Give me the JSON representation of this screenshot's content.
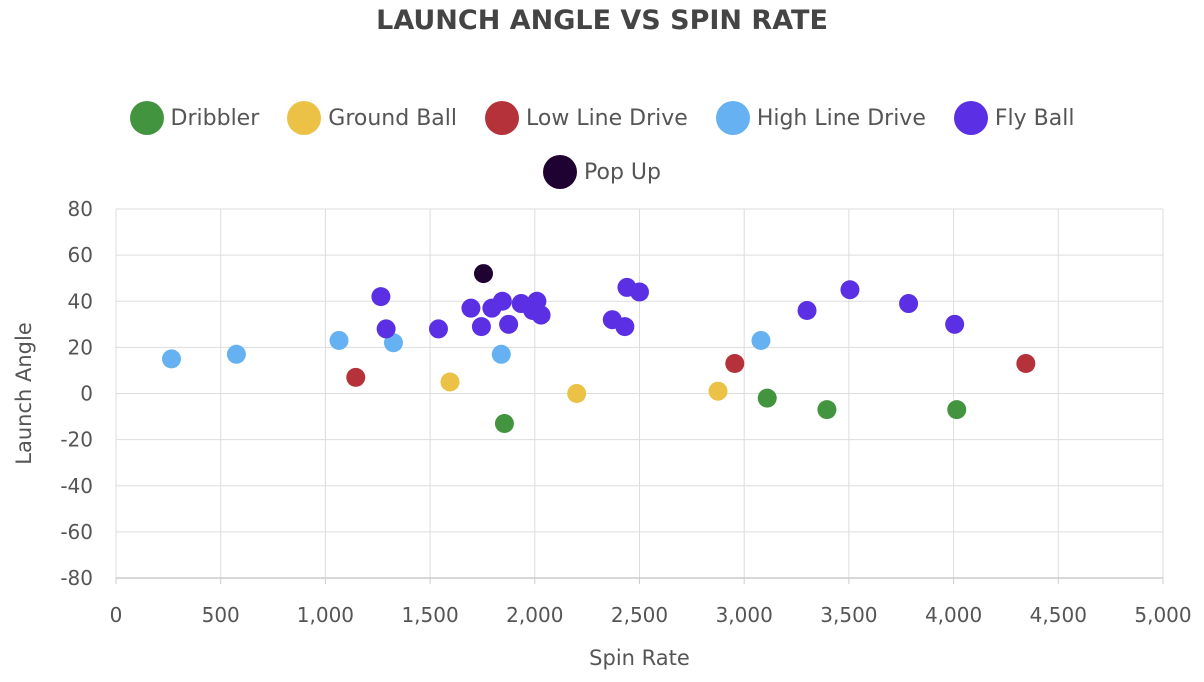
{
  "chart_data": {
    "type": "scatter",
    "title": "LAUNCH ANGLE VS SPIN RATE",
    "xlabel": "Spin Rate",
    "ylabel": "Launch Angle",
    "xlim": [
      0,
      5000
    ],
    "ylim": [
      -80,
      80
    ],
    "x_ticks": [
      0,
      500,
      1000,
      1500,
      2000,
      2500,
      3000,
      3500,
      4000,
      4500,
      5000
    ],
    "x_tick_labels": [
      "0",
      "500",
      "1,000",
      "1,500",
      "2,000",
      "2,500",
      "3,000",
      "3,500",
      "4,000",
      "4,500",
      "5,000"
    ],
    "y_ticks": [
      80,
      60,
      40,
      20,
      0,
      -20,
      -40,
      -60,
      -80
    ],
    "y_tick_labels": [
      "80",
      "60",
      "40",
      "20",
      "0",
      "-20",
      "-40",
      "-60",
      "-80"
    ],
    "grid": true,
    "legend_placement": "top-center",
    "series": [
      {
        "name": "Dribbler",
        "color": "#43943f",
        "points": [
          [
            1855,
            -13
          ],
          [
            3110,
            -2
          ],
          [
            3395,
            -7
          ],
          [
            4015,
            -7
          ]
        ]
      },
      {
        "name": "Ground Ball",
        "color": "#ecc246",
        "points": [
          [
            1595,
            5
          ],
          [
            2200,
            0
          ],
          [
            2875,
            1
          ]
        ]
      },
      {
        "name": "Low Line Drive",
        "color": "#b5323a",
        "points": [
          [
            1145,
            7
          ],
          [
            2955,
            13
          ],
          [
            4345,
            13
          ]
        ]
      },
      {
        "name": "High Line Drive",
        "color": "#66b1f1",
        "points": [
          [
            265,
            15
          ],
          [
            575,
            17
          ],
          [
            1065,
            23
          ],
          [
            1325,
            22
          ],
          [
            1840,
            17
          ],
          [
            3080,
            23
          ]
        ]
      },
      {
        "name": "Fly Ball",
        "color": "#5b2fe4",
        "points": [
          [
            1265,
            42
          ],
          [
            1290,
            28
          ],
          [
            1540,
            28
          ],
          [
            1695,
            37
          ],
          [
            1745,
            29
          ],
          [
            1795,
            37
          ],
          [
            1845,
            40
          ],
          [
            1875,
            30
          ],
          [
            1935,
            39
          ],
          [
            1990,
            36
          ],
          [
            2010,
            40
          ],
          [
            2030,
            34
          ],
          [
            2370,
            32
          ],
          [
            2430,
            29
          ],
          [
            2440,
            46
          ],
          [
            2500,
            44
          ],
          [
            3300,
            36
          ],
          [
            3505,
            45
          ],
          [
            3785,
            39
          ],
          [
            4005,
            30
          ]
        ]
      },
      {
        "name": "Pop Up",
        "color": "#1f0232",
        "points": [
          [
            1755,
            52
          ]
        ]
      }
    ]
  }
}
